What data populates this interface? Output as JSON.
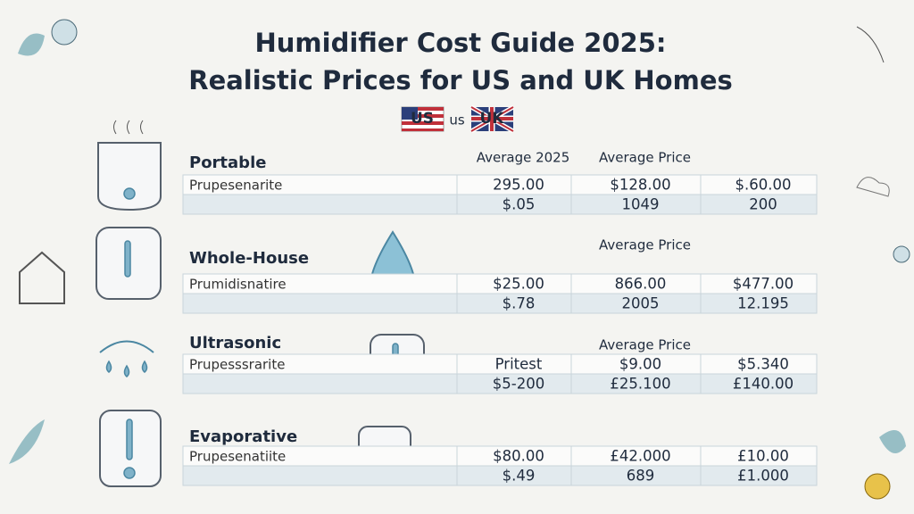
{
  "header": {
    "title_line1": "Humidifier Cost Guide 2025:",
    "title_line2": "Realistic Prices for US and UK Homes",
    "flags": [
      "US",
      "us",
      "UK"
    ]
  },
  "sections": [
    {
      "name": "Portable",
      "headers": [
        "Average 2025",
        "Average Price"
      ],
      "label": "Prupesenarite",
      "rows": [
        [
          "295.00",
          "$128.00",
          "$.60.00"
        ],
        [
          "$.05",
          "1049",
          "200"
        ]
      ]
    },
    {
      "name": "Whole-House",
      "headers": [
        "Average Price"
      ],
      "label": "Prumidisnatire",
      "rows": [
        [
          "$25.00",
          "866.00",
          "$477.00"
        ],
        [
          "$.78",
          "2005",
          "12.195"
        ]
      ]
    },
    {
      "name": "Ultrasonic",
      "headers": [
        "Average Price"
      ],
      "label": "Prupesssrarite",
      "rows": [
        [
          "Pritest",
          "$9.00",
          "$5.340"
        ],
        [
          "$5-200",
          "£25.100",
          "£140.00"
        ]
      ]
    },
    {
      "name": "Evaporative",
      "label": "Prupesenatiite",
      "rows": [
        [
          "$80.00",
          "£42.000",
          "£10.00"
        ],
        [
          "$.49",
          "689",
          "£1.000"
        ]
      ]
    }
  ]
}
